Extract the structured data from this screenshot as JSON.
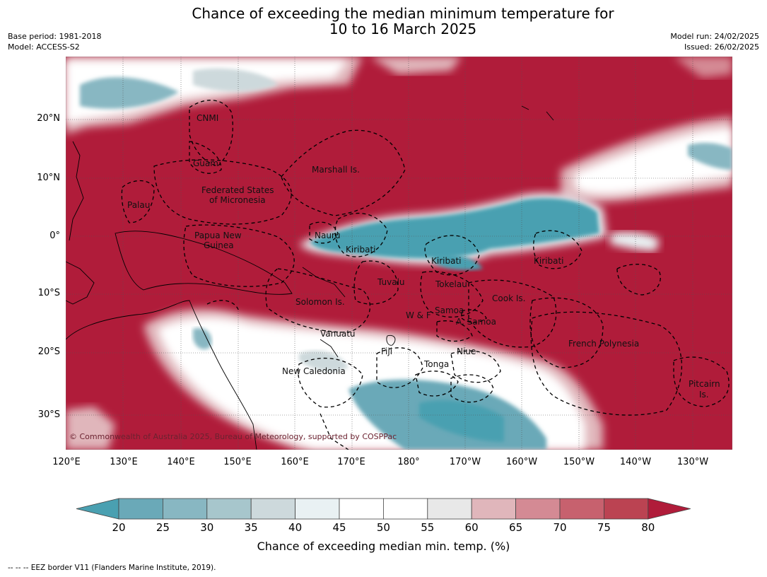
{
  "header": {
    "title_line1": "Chance of exceeding the median minimum temperature for",
    "title_line2": "10 to 16 March 2025",
    "base_period": "Base period: 1981-2018",
    "model": "Model: ACCESS-S2",
    "model_run": "Model run: 24/02/2025",
    "issued": "Issued: 26/02/2025"
  },
  "map": {
    "lat_labels": [
      "20°N",
      "10°N",
      "0°",
      "10°S",
      "20°S",
      "30°S"
    ],
    "lon_labels": [
      "120°E",
      "130°E",
      "140°E",
      "150°E",
      "160°E",
      "170°E",
      "180°",
      "170°W",
      "160°W",
      "150°W",
      "140°W",
      "130°W"
    ],
    "region_labels": [
      "CNMI",
      "Guam",
      "Marshall Is.",
      "Palau",
      "Federated States",
      "of Micronesia",
      "Papua New",
      "Guinea",
      "Nauru",
      "Kiribati",
      "Kiribati",
      "Kiribati",
      "Tuvalu",
      "Tokelau",
      "Solomon Is.",
      "Cook Is.",
      "Samoa",
      "W & F",
      "A. Samoa",
      "Vanuatu",
      "Fiji",
      "Niue",
      "French Polynesia",
      "Tonga",
      "New Caledonia",
      "Pitcairn",
      "Is."
    ],
    "copyright": "© Commonwealth of Australia 2025, Bureau of Meteorology, supported by COSPPac",
    "colors": {
      "above": "#b01c3a",
      "below": "#4aa0b1",
      "neutral": "#ffffff"
    }
  },
  "colorbar": {
    "title": "Chance of exceeding median min. temp. (%)",
    "ticks": [
      "20",
      "25",
      "30",
      "35",
      "40",
      "45",
      "50",
      "55",
      "60",
      "65",
      "70",
      "75",
      "80"
    ],
    "colors": [
      "#4aa0b1",
      "#6aa9b8",
      "#88b7c2",
      "#a7c6cc",
      "#cdd9dc",
      "#e9f1f3",
      "#ffffff",
      "#ffffff",
      "#e8e8e8",
      "#e0b6bb",
      "#d48a94",
      "#c7616e",
      "#bb4352",
      "#b01c3a"
    ]
  },
  "footnote": "--  --  -- EEZ border V11 (Flanders Marine Institute, 2019)."
}
